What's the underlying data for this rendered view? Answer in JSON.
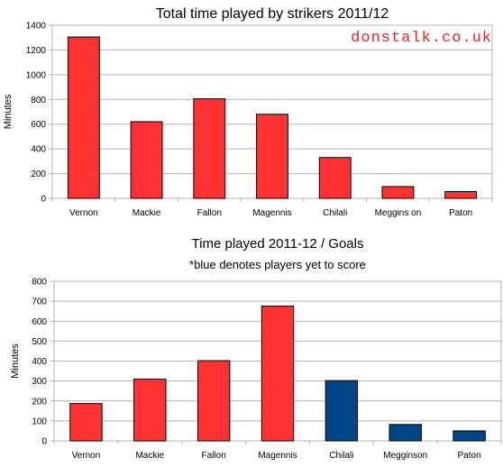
{
  "watermark": "donstalk.co.uk",
  "colors": {
    "red": "#ff3333",
    "blue": "#004586",
    "grid": "#b3b3b3",
    "axis": "#000000"
  },
  "chart_data": [
    {
      "type": "bar",
      "title": "Total time played by strikers 2011/12",
      "subtitle": "",
      "xlabel": "",
      "ylabel": "Minutes",
      "categories": [
        "Vernon",
        "Mackie",
        "Fallon",
        "Magennis",
        "Chilali",
        "Meggins on",
        "Paton"
      ],
      "values": [
        1305,
        620,
        805,
        680,
        330,
        95,
        55
      ],
      "bar_colors": [
        "#ff3333",
        "#ff3333",
        "#ff3333",
        "#ff3333",
        "#ff3333",
        "#ff3333",
        "#ff3333"
      ],
      "ylim": [
        0,
        1400
      ],
      "yticks": [
        0,
        200,
        400,
        600,
        800,
        1000,
        1200,
        1400
      ],
      "grid": true,
      "legend": "none"
    },
    {
      "type": "bar",
      "title": "Time played 2011-12 / Goals",
      "subtitle": "*blue denotes players yet to score",
      "xlabel": "",
      "ylabel": "Minutes",
      "categories": [
        "Vernon",
        "Mackie",
        "Fallon",
        "Magennis",
        "Chilali",
        "Megginson",
        "Paton"
      ],
      "values": [
        187,
        310,
        402,
        676,
        302,
        82,
        50
      ],
      "bar_colors": [
        "#ff3333",
        "#ff3333",
        "#ff3333",
        "#ff3333",
        "#004586",
        "#004586",
        "#004586"
      ],
      "ylim": [
        0,
        800
      ],
      "yticks": [
        0,
        100,
        200,
        300,
        400,
        500,
        600,
        700,
        800
      ],
      "grid": true,
      "legend": "none"
    }
  ]
}
